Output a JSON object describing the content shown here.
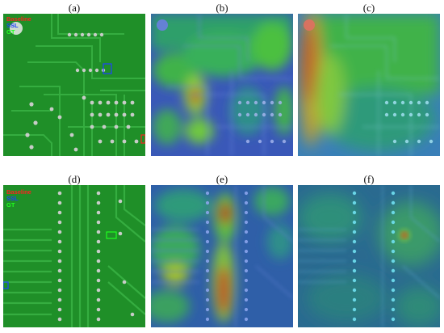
{
  "figure": {
    "panel_labels": [
      "(a)",
      "(b)",
      "(c)",
      "(d)",
      "(e)",
      "(f)"
    ],
    "legend_a": [
      {
        "text": "Baseline",
        "color": "#ff2020"
      },
      {
        "text": "SSL",
        "color": "#2040ff"
      },
      {
        "text": "GT",
        "color": "#20ff20"
      }
    ],
    "legend_d": [
      {
        "text": "Baseline",
        "color": "#ff2020"
      },
      {
        "text": "SSL",
        "color": "#2040ff"
      },
      {
        "text": "GT",
        "color": "#20ff20"
      }
    ]
  },
  "colors": {
    "pcb_green": "#1f8f28",
    "trace_green": "#2fa83a",
    "pad_silver": "#c8ccc8",
    "heat_low": "#2b4fb3",
    "heat_mid": "#30c060",
    "heat_high": "#d03020"
  }
}
